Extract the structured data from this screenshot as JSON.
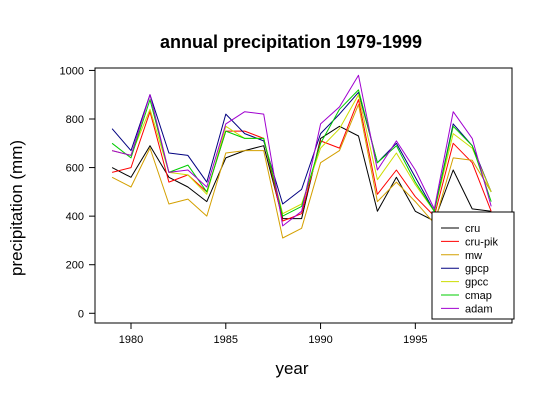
{
  "chart_data": {
    "type": "line",
    "title": "annual precipitation 1979-1999",
    "xlabel": "year",
    "ylabel": "precipitation (mm)",
    "xlim": [
      1978.1,
      2000.1
    ],
    "ylim": [
      -40,
      1010
    ],
    "x_ticks": [
      1980,
      1985,
      1990,
      1995
    ],
    "y_ticks": [
      0,
      200,
      400,
      600,
      800,
      1000
    ],
    "x": [
      1979,
      1980,
      1981,
      1982,
      1983,
      1984,
      1985,
      1986,
      1987,
      1988,
      1989,
      1990,
      1991,
      1992,
      1993,
      1994,
      1995,
      1996,
      1997,
      1998,
      1999
    ],
    "legend_position": "bottom-right",
    "series": [
      {
        "name": "cru",
        "color": "#000000",
        "values": [
          600,
          560,
          690,
          560,
          520,
          460,
          640,
          670,
          690,
          390,
          390,
          720,
          770,
          730,
          420,
          560,
          420,
          380,
          590,
          430,
          420
        ]
      },
      {
        "name": "cru-pik",
        "color": "#ff0000",
        "values": [
          580,
          600,
          830,
          540,
          570,
          500,
          750,
          750,
          720,
          380,
          410,
          710,
          680,
          880,
          490,
          590,
          480,
          400,
          700,
          620,
          420
        ]
      },
      {
        "name": "mw",
        "color": "#d4a000",
        "values": [
          560,
          520,
          680,
          450,
          470,
          400,
          660,
          670,
          670,
          310,
          350,
          620,
          670,
          860,
          460,
          540,
          460,
          370,
          640,
          630,
          500
        ]
      },
      {
        "name": "gpcp",
        "color": "#000080",
        "values": [
          760,
          670,
          900,
          660,
          650,
          540,
          820,
          740,
          710,
          450,
          510,
          740,
          820,
          910,
          620,
          700,
          560,
          420,
          780,
          690,
          500
        ]
      },
      {
        "name": "gpcc",
        "color": "#ccdd00",
        "values": [
          670,
          650,
          840,
          580,
          570,
          490,
          770,
          720,
          720,
          410,
          450,
          680,
          760,
          900,
          550,
          660,
          530,
          420,
          740,
          680,
          500
        ]
      },
      {
        "name": "cmap",
        "color": "#00cc00",
        "values": [
          700,
          640,
          880,
          580,
          610,
          500,
          750,
          720,
          720,
          400,
          440,
          700,
          840,
          920,
          620,
          690,
          540,
          420,
          770,
          690,
          460
        ]
      },
      {
        "name": "adam",
        "color": "#a000d0",
        "values": [
          670,
          650,
          900,
          580,
          590,
          520,
          780,
          830,
          820,
          360,
          420,
          780,
          850,
          980,
          590,
          710,
          590,
          430,
          830,
          720,
          440
        ]
      }
    ]
  }
}
